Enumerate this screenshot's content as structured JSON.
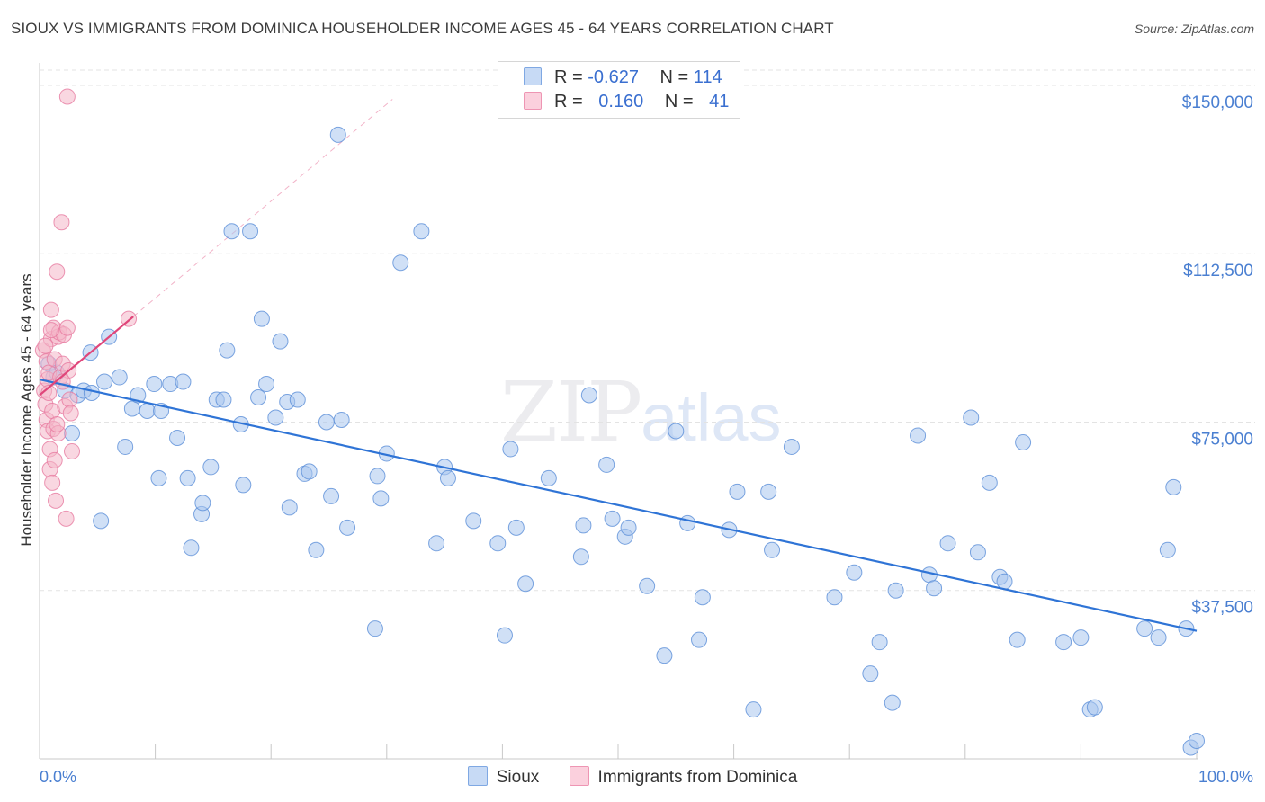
{
  "title": "SIOUX VS IMMIGRANTS FROM DOMINICA HOUSEHOLDER INCOME AGES 45 - 64 YEARS CORRELATION CHART",
  "source": "Source: ZipAtlas.com",
  "watermark": {
    "zip": "ZIP",
    "atlas": "atlas"
  },
  "legend": {
    "rows": [
      {
        "r_label": "R = ",
        "r_value": "-0.627",
        "n_label": "N = ",
        "n_value": "114",
        "color": "#a9c6ee"
      },
      {
        "r_label": "R = ",
        "r_value": "0.160",
        "n_label": "N = ",
        "n_value": "41",
        "color": "#f4b6c9"
      }
    ]
  },
  "bottom_legend": [
    {
      "label": "Sioux",
      "color": "#a9c6ee"
    },
    {
      "label": "Immigrants from Dominica",
      "color": "#f4b6c9"
    }
  ],
  "chart_data": {
    "type": "scatter",
    "title": "SIOUX VS IMMIGRANTS FROM DOMINICA HOUSEHOLDER INCOME AGES 45 - 64 YEARS CORRELATION CHART",
    "xlabel": "",
    "ylabel": "Householder Income Ages 45 - 64 years",
    "xlim": [
      0,
      100
    ],
    "ylim": [
      0,
      155000
    ],
    "x_tick_labels": [
      "0.0%",
      "100.0%"
    ],
    "y_ticks": [
      37500,
      75000,
      112500,
      150000
    ],
    "y_tick_labels": [
      "$37,500",
      "$75,000",
      "$112,500",
      "$150,000"
    ],
    "grid": true,
    "legend_position": "top-center",
    "series": [
      {
        "name": "Sioux",
        "color": "#5b8fd8",
        "fill": "#a9c6ee",
        "trend": {
          "x": [
            0,
            100
          ],
          "y": [
            84500,
            28500
          ]
        },
        "points": [
          [
            0.8,
            88000
          ],
          [
            1.2,
            85000
          ],
          [
            1.5,
            86000
          ],
          [
            2.2,
            82000
          ],
          [
            2.8,
            72500
          ],
          [
            3.3,
            81000
          ],
          [
            3.8,
            82000
          ],
          [
            4.5,
            81500
          ],
          [
            4.4,
            90500
          ],
          [
            5.3,
            53000
          ],
          [
            5.6,
            84000
          ],
          [
            6.0,
            94000
          ],
          [
            6.9,
            85000
          ],
          [
            7.4,
            69500
          ],
          [
            8.0,
            78000
          ],
          [
            8.5,
            81000
          ],
          [
            9.3,
            77500
          ],
          [
            9.9,
            83500
          ],
          [
            10.3,
            62500
          ],
          [
            10.5,
            77500
          ],
          [
            11.3,
            83500
          ],
          [
            11.9,
            71500
          ],
          [
            12.4,
            84000
          ],
          [
            12.8,
            62500
          ],
          [
            13.1,
            47000
          ],
          [
            14.0,
            54500
          ],
          [
            14.1,
            57000
          ],
          [
            14.8,
            65000
          ],
          [
            15.3,
            80000
          ],
          [
            15.9,
            80000
          ],
          [
            16.2,
            91000
          ],
          [
            16.6,
            117500
          ],
          [
            17.4,
            74500
          ],
          [
            17.6,
            61000
          ],
          [
            18.2,
            117500
          ],
          [
            18.9,
            80500
          ],
          [
            19.2,
            98000
          ],
          [
            19.6,
            83500
          ],
          [
            20.4,
            76000
          ],
          [
            20.8,
            93000
          ],
          [
            21.4,
            79500
          ],
          [
            21.6,
            56000
          ],
          [
            22.3,
            80000
          ],
          [
            22.9,
            63500
          ],
          [
            23.3,
            64000
          ],
          [
            23.9,
            46500
          ],
          [
            24.8,
            75000
          ],
          [
            25.2,
            58500
          ],
          [
            25.8,
            139000
          ],
          [
            26.1,
            75500
          ],
          [
            26.6,
            51500
          ],
          [
            29.0,
            29000
          ],
          [
            29.2,
            63000
          ],
          [
            29.5,
            58000
          ],
          [
            30.0,
            68000
          ],
          [
            31.2,
            110500
          ],
          [
            33.0,
            117500
          ],
          [
            34.3,
            48000
          ],
          [
            35.0,
            65000
          ],
          [
            35.3,
            62500
          ],
          [
            37.5,
            53000
          ],
          [
            39.6,
            48000
          ],
          [
            40.2,
            27500
          ],
          [
            40.7,
            69000
          ],
          [
            41.2,
            51500
          ],
          [
            42.0,
            39000
          ],
          [
            44.0,
            62500
          ],
          [
            47.0,
            52000
          ],
          [
            47.5,
            81000
          ],
          [
            49.0,
            65500
          ],
          [
            49.5,
            53500
          ],
          [
            50.6,
            49500
          ],
          [
            50.9,
            51500
          ],
          [
            54.0,
            23000
          ],
          [
            55.0,
            73000
          ],
          [
            56.0,
            52500
          ],
          [
            57.0,
            26500
          ],
          [
            59.6,
            51000
          ],
          [
            60.3,
            59500
          ],
          [
            61.7,
            11000
          ],
          [
            63.0,
            59500
          ],
          [
            65.0,
            69500
          ],
          [
            68.7,
            36000
          ],
          [
            70.4,
            41500
          ],
          [
            71.8,
            19000
          ],
          [
            72.6,
            26000
          ],
          [
            73.7,
            12500
          ],
          [
            75.9,
            72000
          ],
          [
            76.9,
            41000
          ],
          [
            77.3,
            38000
          ],
          [
            78.5,
            48000
          ],
          [
            80.5,
            76000
          ],
          [
            81.1,
            46000
          ],
          [
            82.1,
            61500
          ],
          [
            83.0,
            40500
          ],
          [
            83.4,
            39500
          ],
          [
            84.5,
            26500
          ],
          [
            85.0,
            70500
          ],
          [
            88.5,
            26000
          ],
          [
            90.0,
            27000
          ],
          [
            90.8,
            11000
          ],
          [
            91.2,
            11500
          ],
          [
            95.5,
            29000
          ],
          [
            96.7,
            27000
          ],
          [
            97.5,
            46500
          ],
          [
            98.0,
            60500
          ],
          [
            99.1,
            29000
          ],
          [
            99.5,
            2500
          ],
          [
            100.0,
            4000
          ],
          [
            63.3,
            46500
          ],
          [
            74.0,
            37500
          ],
          [
            57.3,
            36000
          ],
          [
            52.5,
            38500
          ],
          [
            46.8,
            45000
          ]
        ]
      },
      {
        "name": "Immigrants from Dominica",
        "color": "#e77aa0",
        "fill": "#f4b6c9",
        "trend": {
          "x": [
            0,
            8.1
          ],
          "y": [
            81000,
            98500
          ]
        },
        "points": [
          [
            0.3,
            91000
          ],
          [
            0.4,
            82000
          ],
          [
            0.5,
            79000
          ],
          [
            0.6,
            88500
          ],
          [
            0.6,
            75500
          ],
          [
            0.7,
            84500
          ],
          [
            0.7,
            73000
          ],
          [
            0.8,
            86000
          ],
          [
            0.9,
            69000
          ],
          [
            0.9,
            64500
          ],
          [
            1.0,
            100000
          ],
          [
            1.0,
            93500
          ],
          [
            1.1,
            77500
          ],
          [
            1.1,
            61500
          ],
          [
            1.2,
            96000
          ],
          [
            1.2,
            73500
          ],
          [
            1.3,
            89000
          ],
          [
            1.3,
            66500
          ],
          [
            1.4,
            57500
          ],
          [
            1.5,
            108500
          ],
          [
            1.6,
            94000
          ],
          [
            1.6,
            72500
          ],
          [
            1.7,
            95000
          ],
          [
            1.8,
            85000
          ],
          [
            1.9,
            119500
          ],
          [
            2.0,
            88000
          ],
          [
            2.1,
            94500
          ],
          [
            2.2,
            78500
          ],
          [
            2.3,
            53500
          ],
          [
            2.4,
            96000
          ],
          [
            2.4,
            147500
          ],
          [
            2.5,
            86500
          ],
          [
            2.6,
            80000
          ],
          [
            2.7,
            77000
          ],
          [
            2.8,
            68500
          ],
          [
            0.5,
            92000
          ],
          [
            0.8,
            81500
          ],
          [
            1.5,
            74500
          ],
          [
            2.0,
            84000
          ],
          [
            7.7,
            98000
          ],
          [
            1.0,
            95500
          ]
        ]
      }
    ]
  }
}
